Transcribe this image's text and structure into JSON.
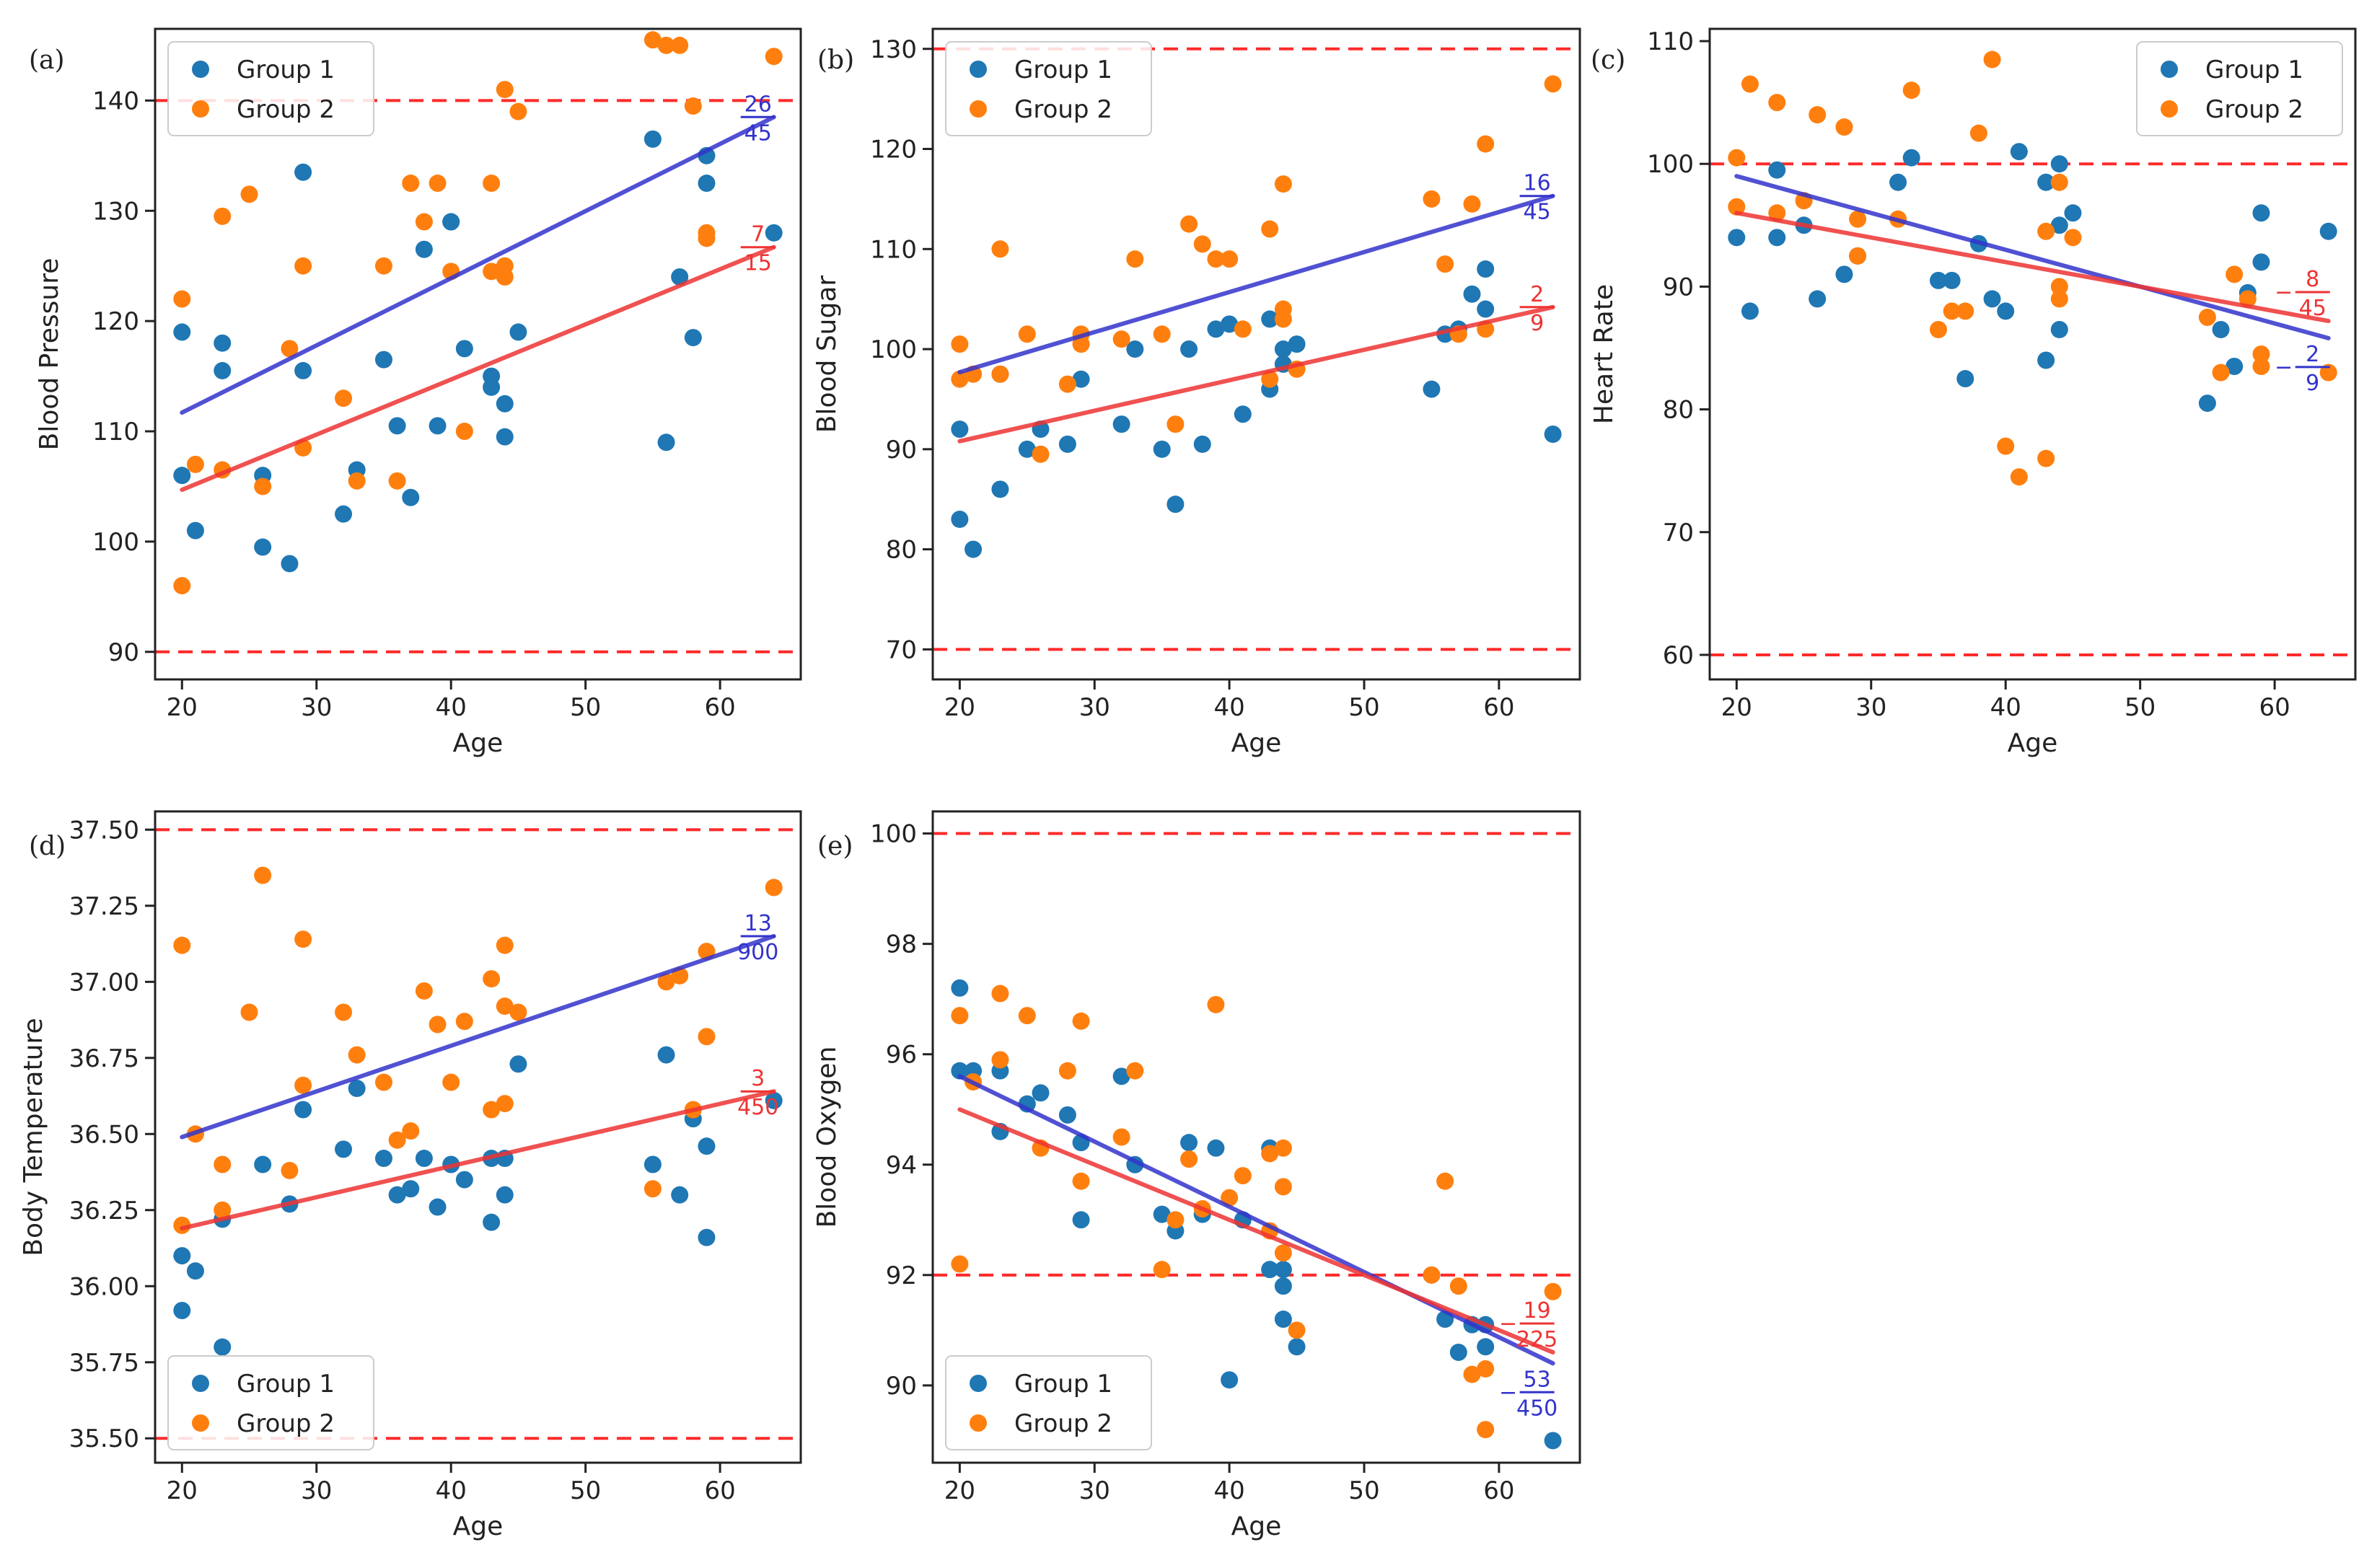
{
  "chart_data": [
    {
      "panel_label": "(a)",
      "type": "scatter",
      "xlabel": "Age",
      "ylabel": "Blood Pressure",
      "xlim": [
        18,
        66
      ],
      "ylim": [
        87.5,
        146.5
      ],
      "xticks": [
        20,
        30,
        40,
        50,
        60
      ],
      "yticks": [
        90,
        100,
        110,
        120,
        130,
        140
      ],
      "ytick_labels": [
        "90",
        "100",
        "110",
        "120",
        "130",
        "140"
      ],
      "legend": "top-left",
      "legend_entries": [
        "Group 1",
        "Group 2"
      ],
      "threshold_lines": [
        90,
        140
      ],
      "series": [
        {
          "name": "Group 1",
          "color": "#1f77b4",
          "x": [
            20,
            20,
            21,
            23,
            23,
            26,
            26,
            28,
            29,
            29,
            32,
            33,
            35,
            36,
            37,
            38,
            39,
            40,
            40,
            41,
            43,
            43,
            44,
            44,
            45,
            55,
            56,
            57,
            58,
            59,
            59,
            64
          ],
          "y": [
            119,
            106,
            101,
            118,
            115.5,
            106,
            99.5,
            98,
            133.5,
            115.5,
            102.5,
            106.5,
            116.5,
            110.5,
            104,
            126.5,
            110.5,
            129,
            129,
            117.5,
            115,
            114,
            109.5,
            112.5,
            119,
            136.5,
            109,
            124,
            118.5,
            132.5,
            135,
            128
          ]
        },
        {
          "name": "Group 2",
          "color": "#ff7f0e",
          "x": [
            20,
            20,
            21,
            23,
            23,
            25,
            26,
            28,
            29,
            29,
            32,
            33,
            35,
            36,
            37,
            38,
            39,
            40,
            41,
            43,
            43,
            44,
            44,
            44,
            45,
            55,
            56,
            57,
            58,
            59,
            59,
            64
          ],
          "y": [
            122,
            96,
            107,
            129.5,
            106.5,
            131.5,
            105,
            117.5,
            125,
            108.5,
            113,
            105.5,
            125,
            105.5,
            132.5,
            129,
            132.5,
            124.5,
            110,
            132.5,
            124.5,
            141,
            125,
            124,
            139,
            145.5,
            145,
            145,
            139.5,
            128,
            127.5,
            144
          ]
        }
      ],
      "fit_lines": [
        {
          "name": "Group 1 fit",
          "color": "#3333cc",
          "label_num": "26",
          "label_den": "45",
          "x": [
            20,
            64
          ],
          "y": [
            111.7,
            138.5
          ]
        },
        {
          "name": "Group 2 fit",
          "color": "#ee3333",
          "label_num": "7",
          "label_den": "15",
          "x": [
            20,
            64
          ],
          "y": [
            104.7,
            126.7
          ]
        }
      ]
    },
    {
      "panel_label": "(b)",
      "type": "scatter",
      "xlabel": "Age",
      "ylabel": "Blood Sugar",
      "xlim": [
        18,
        66
      ],
      "ylim": [
        67,
        132
      ],
      "xticks": [
        20,
        30,
        40,
        50,
        60
      ],
      "yticks": [
        70,
        80,
        90,
        100,
        110,
        120,
        130
      ],
      "ytick_labels": [
        "70",
        "80",
        "90",
        "100",
        "110",
        "120",
        "130"
      ],
      "legend": "top-left",
      "legend_entries": [
        "Group 1",
        "Group 2"
      ],
      "threshold_lines": [
        70,
        130
      ],
      "series": [
        {
          "name": "Group 1",
          "color": "#1f77b4",
          "x": [
            20,
            20,
            21,
            23,
            23,
            25,
            26,
            28,
            29,
            32,
            33,
            35,
            36,
            37,
            38,
            39,
            40,
            41,
            43,
            43,
            44,
            44,
            45,
            55,
            56,
            57,
            58,
            59,
            59,
            64
          ],
          "y": [
            92,
            83,
            80,
            86,
            97.5,
            90,
            92,
            90.5,
            97,
            92.5,
            100,
            90,
            84.5,
            100,
            90.5,
            102,
            102.5,
            93.5,
            103,
            96,
            100,
            98.5,
            100.5,
            96,
            101.5,
            102,
            105.5,
            104,
            108,
            91.5
          ]
        },
        {
          "name": "Group 2",
          "color": "#ff7f0e",
          "x": [
            20,
            20,
            21,
            23,
            23,
            25,
            26,
            28,
            29,
            29,
            32,
            33,
            35,
            36,
            37,
            38,
            39,
            40,
            41,
            43,
            43,
            44,
            44,
            44,
            45,
            55,
            56,
            57,
            58,
            59,
            59,
            64
          ],
          "y": [
            100.5,
            97,
            97.5,
            110,
            97.5,
            101.5,
            89.5,
            96.5,
            100.5,
            101.5,
            101,
            109,
            101.5,
            92.5,
            112.5,
            110.5,
            109,
            109,
            102,
            112,
            97,
            116.5,
            104,
            103,
            98,
            115,
            108.5,
            101.5,
            114.5,
            120.5,
            102,
            126.5
          ]
        }
      ],
      "fit_lines": [
        {
          "name": "Group 1 fit",
          "color": "#3333cc",
          "label_num": "16",
          "label_den": "45",
          "x": [
            20,
            64
          ],
          "y": [
            97.7,
            115.3
          ]
        },
        {
          "name": "Group 2 fit",
          "color": "#ee3333",
          "label_num": "2",
          "label_den": "9",
          "x": [
            20,
            64
          ],
          "y": [
            90.8,
            104.2
          ]
        }
      ]
    },
    {
      "panel_label": "(c)",
      "type": "scatter",
      "xlabel": "Age",
      "ylabel": "Heart Rate",
      "xlim": [
        18,
        66
      ],
      "ylim": [
        58,
        111
      ],
      "xticks": [
        20,
        30,
        40,
        50,
        60
      ],
      "yticks": [
        60,
        70,
        80,
        90,
        100,
        110
      ],
      "ytick_labels": [
        "60",
        "70",
        "80",
        "90",
        "100",
        "110"
      ],
      "legend": "top-right",
      "legend_entries": [
        "Group 1",
        "Group 2"
      ],
      "threshold_lines": [
        60,
        100
      ],
      "series": [
        {
          "name": "Group 1",
          "color": "#1f77b4",
          "x": [
            20,
            21,
            23,
            23,
            25,
            26,
            28,
            29,
            32,
            33,
            35,
            36,
            37,
            38,
            39,
            40,
            41,
            43,
            43,
            44,
            44,
            44,
            45,
            55,
            56,
            57,
            58,
            59,
            59,
            64
          ],
          "y": [
            94,
            88,
            94,
            99.5,
            95,
            89,
            91,
            92.5,
            98.5,
            100.5,
            90.5,
            90.5,
            82.5,
            93.5,
            89,
            88,
            101,
            84,
            98.5,
            86.5,
            100,
            95,
            96,
            80.5,
            86.5,
            83.5,
            89.5,
            92,
            96,
            94.5
          ]
        },
        {
          "name": "Group 2",
          "color": "#ff7f0e",
          "x": [
            20,
            20,
            21,
            23,
            23,
            25,
            26,
            28,
            29,
            29,
            32,
            33,
            35,
            36,
            37,
            38,
            39,
            40,
            41,
            43,
            43,
            44,
            44,
            44,
            45,
            55,
            56,
            57,
            58,
            59,
            59,
            64
          ],
          "y": [
            100.5,
            96.5,
            106.5,
            105,
            96,
            97,
            104,
            103,
            95.5,
            92.5,
            95.5,
            106,
            86.5,
            88,
            88,
            102.5,
            108.5,
            77,
            74.5,
            76,
            94.5,
            98.5,
            90,
            89,
            94,
            87.5,
            83,
            91,
            89,
            83.5,
            84.5,
            83
          ]
        }
      ],
      "fit_lines": [
        {
          "name": "Group 1 fit",
          "color": "#3333cc",
          "label_num": "2",
          "label_den": "9",
          "label_sign": "−",
          "x": [
            20,
            64
          ],
          "y": [
            99,
            85.8
          ]
        },
        {
          "name": "Group 2 fit",
          "color": "#ee3333",
          "label_num": "8",
          "label_den": "45",
          "label_sign": "−",
          "x": [
            20,
            64
          ],
          "y": [
            96,
            87.2
          ]
        }
      ]
    },
    {
      "panel_label": "(d)",
      "type": "scatter",
      "xlabel": "Age",
      "ylabel": "Body Temperature",
      "xlim": [
        18,
        66
      ],
      "ylim": [
        35.42,
        37.56
      ],
      "xticks": [
        20,
        30,
        40,
        50,
        60
      ],
      "yticks": [
        35.5,
        35.75,
        36.0,
        36.25,
        36.5,
        36.75,
        37.0,
        37.25,
        37.5
      ],
      "ytick_labels": [
        "35.50",
        "35.75",
        "36.00",
        "36.25",
        "36.50",
        "36.75",
        "37.00",
        "37.25",
        "37.50"
      ],
      "legend": "bottom-left",
      "legend_entries": [
        "Group 1",
        "Group 2"
      ],
      "threshold_lines": [
        35.5,
        37.5
      ],
      "series": [
        {
          "name": "Group 1",
          "color": "#1f77b4",
          "x": [
            20,
            20,
            21,
            23,
            23,
            26,
            28,
            29,
            32,
            33,
            35,
            36,
            37,
            38,
            39,
            40,
            41,
            43,
            43,
            44,
            44,
            45,
            55,
            56,
            57,
            58,
            59,
            59,
            64
          ],
          "y": [
            36.1,
            35.92,
            36.05,
            35.8,
            36.22,
            36.4,
            36.27,
            36.58,
            36.45,
            36.65,
            36.42,
            36.3,
            36.32,
            36.42,
            36.26,
            36.4,
            36.35,
            36.42,
            36.21,
            36.3,
            36.42,
            36.73,
            36.4,
            36.76,
            36.3,
            36.55,
            36.16,
            36.46,
            36.61
          ]
        },
        {
          "name": "Group 2",
          "color": "#ff7f0e",
          "x": [
            20,
            20,
            21,
            23,
            23,
            25,
            26,
            28,
            29,
            29,
            32,
            33,
            35,
            36,
            37,
            38,
            39,
            40,
            41,
            43,
            43,
            44,
            44,
            44,
            45,
            55,
            56,
            57,
            58,
            59,
            59,
            64
          ],
          "y": [
            37.12,
            36.2,
            36.5,
            36.4,
            36.25,
            36.9,
            37.35,
            36.38,
            37.14,
            36.66,
            36.9,
            36.76,
            36.67,
            36.48,
            36.51,
            36.97,
            36.86,
            36.67,
            36.87,
            37.01,
            36.58,
            37.12,
            36.92,
            36.6,
            36.9,
            36.32,
            37.0,
            37.02,
            36.58,
            37.1,
            36.82,
            37.31
          ]
        }
      ],
      "fit_lines": [
        {
          "name": "Group 1 fit",
          "color": "#3333cc",
          "label_num": "13",
          "label_den": "900",
          "x": [
            20,
            64
          ],
          "y": [
            36.49,
            37.15
          ]
        },
        {
          "name": "Group 2 fit",
          "color": "#ee3333",
          "label_num": "3",
          "label_den": "450",
          "x": [
            20,
            64
          ],
          "y": [
            36.19,
            36.64
          ]
        }
      ]
    },
    {
      "panel_label": "(e)",
      "type": "scatter",
      "xlabel": "Age",
      "ylabel": "Blood Oxygen",
      "xlim": [
        18,
        66
      ],
      "ylim": [
        88.6,
        100.4
      ],
      "xticks": [
        20,
        30,
        40,
        50,
        60
      ],
      "yticks": [
        90,
        92,
        94,
        96,
        98,
        100
      ],
      "ytick_labels": [
        "90",
        "92",
        "94",
        "96",
        "98",
        "100"
      ],
      "legend": "bottom-left",
      "legend_entries": [
        "Group 1",
        "Group 2"
      ],
      "threshold_lines": [
        92,
        100
      ],
      "series": [
        {
          "name": "Group 1",
          "color": "#1f77b4",
          "x": [
            20,
            20,
            21,
            23,
            23,
            25,
            26,
            28,
            29,
            29,
            32,
            33,
            35,
            36,
            37,
            38,
            39,
            40,
            41,
            43,
            43,
            44,
            44,
            44,
            45,
            55,
            56,
            57,
            58,
            59,
            59,
            64
          ],
          "y": [
            97.2,
            95.7,
            95.7,
            95.7,
            94.6,
            95.1,
            95.3,
            94.9,
            94.4,
            93,
            95.6,
            94,
            93.1,
            92.8,
            94.4,
            93.1,
            94.3,
            90.1,
            93,
            94.3,
            92.1,
            91.8,
            91.2,
            92.1,
            90.7,
            92,
            91.2,
            90.6,
            91.1,
            90.7,
            91.1,
            89
          ]
        },
        {
          "name": "Group 2",
          "color": "#ff7f0e",
          "x": [
            20,
            20,
            21,
            23,
            23,
            25,
            26,
            28,
            29,
            29,
            32,
            33,
            35,
            36,
            37,
            38,
            39,
            40,
            41,
            43,
            43,
            44,
            44,
            44,
            45,
            55,
            56,
            57,
            58,
            59,
            59,
            64
          ],
          "y": [
            96.7,
            92.2,
            95.5,
            97.1,
            95.9,
            96.7,
            94.3,
            95.7,
            96.6,
            93.7,
            94.5,
            95.7,
            92.1,
            93,
            94.1,
            93.2,
            96.9,
            93.4,
            93.8,
            92.8,
            94.2,
            93.6,
            94.3,
            92.4,
            91,
            92,
            93.7,
            91.8,
            90.2,
            89.2,
            90.3,
            91.7
          ]
        }
      ],
      "fit_lines": [
        {
          "name": "Group 1 fit",
          "color": "#3333cc",
          "label_num": "53",
          "label_den": "450",
          "label_sign": "−",
          "x": [
            20,
            64
          ],
          "y": [
            95.6,
            90.4
          ]
        },
        {
          "name": "Group 2 fit",
          "color": "#ee3333",
          "label_num": "19",
          "label_den": "225",
          "label_sign": "−",
          "x": [
            20,
            64
          ],
          "y": [
            95.0,
            90.6
          ]
        }
      ]
    }
  ]
}
